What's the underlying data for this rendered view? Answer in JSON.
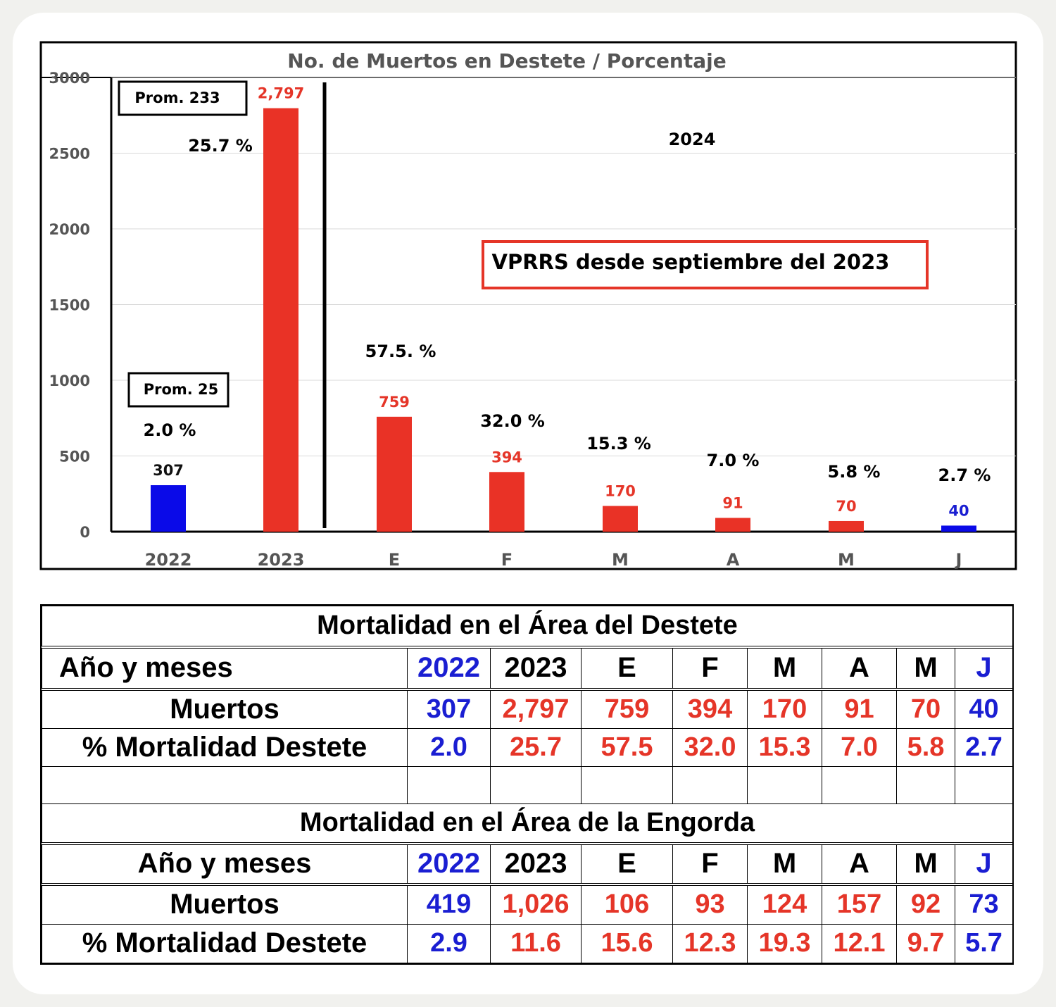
{
  "chart_data": {
    "type": "bar",
    "title": "No. de Muertos en Destete / Porcentaje",
    "categories": [
      "2022",
      "2023",
      "E",
      "F",
      "M",
      "A",
      "M",
      "J"
    ],
    "values": [
      307,
      2797,
      759,
      394,
      170,
      91,
      70,
      40
    ],
    "value_labels": [
      "307",
      "2,797",
      "759",
      "394",
      "170",
      "91",
      "70",
      "40"
    ],
    "percent_labels": [
      "2.0 %",
      "25.7 %",
      "57.5. %",
      "32.0 %",
      "15.3 %",
      "7.0 %",
      "5.8 %",
      "2.7 %"
    ],
    "bar_colors": [
      "#0a0ae8",
      "#e93226",
      "#e93226",
      "#e93226",
      "#e93226",
      "#e93226",
      "#e93226",
      "#0a0ae8"
    ],
    "value_label_colors": [
      "#111111",
      "#e53528",
      "#e53528",
      "#e53528",
      "#e53528",
      "#e53528",
      "#e53528",
      "#1a1ed2"
    ],
    "ylim": [
      0,
      3000
    ],
    "yticks": [
      0,
      500,
      1000,
      1500,
      2000,
      2500,
      3000
    ],
    "xlabel": "",
    "ylabel": "",
    "grid": true,
    "annotations": {
      "prom_2023": "Prom. 233",
      "prom_2022": "Prom. 25",
      "year_2024": "2024",
      "vprrs_note": "VPRRS desde septiembre del 2023"
    }
  },
  "tables": {
    "destete": {
      "title": "Mortalidad en el Área del Destete",
      "header_label": "Año y meses",
      "columns": [
        "2022",
        "2023",
        "E",
        "F",
        "M",
        "A",
        "M",
        "J"
      ],
      "rows": [
        {
          "label": "Muertos",
          "values": [
            "307",
            "2,797",
            "759",
            "394",
            "170",
            "91",
            "70",
            "40"
          ]
        },
        {
          "label": "% Mortalidad Destete",
          "values": [
            "2.0",
            "25.7",
            "57.5",
            "32.0",
            "15.3",
            "7.0",
            "5.8",
            "2.7"
          ]
        }
      ]
    },
    "engorda": {
      "title": "Mortalidad en el Área de la Engorda",
      "header_label": "Año y meses",
      "columns": [
        "2022",
        "2023",
        "E",
        "F",
        "M",
        "A",
        "M",
        "J"
      ],
      "rows": [
        {
          "label": "Muertos",
          "values": [
            "419",
            "1,026",
            "106",
            "93",
            "124",
            "157",
            "92",
            "73"
          ]
        },
        {
          "label": "% Mortalidad Destete",
          "values": [
            "2.9",
            "11.6",
            "15.6",
            "12.3",
            "19.3",
            "12.1",
            "9.7",
            "5.7"
          ]
        }
      ]
    }
  },
  "colors": {
    "bar_red": "#e93226",
    "bar_blue": "#0a0ae8",
    "text_red": "#e53528",
    "text_blue": "#1a1ed2"
  }
}
